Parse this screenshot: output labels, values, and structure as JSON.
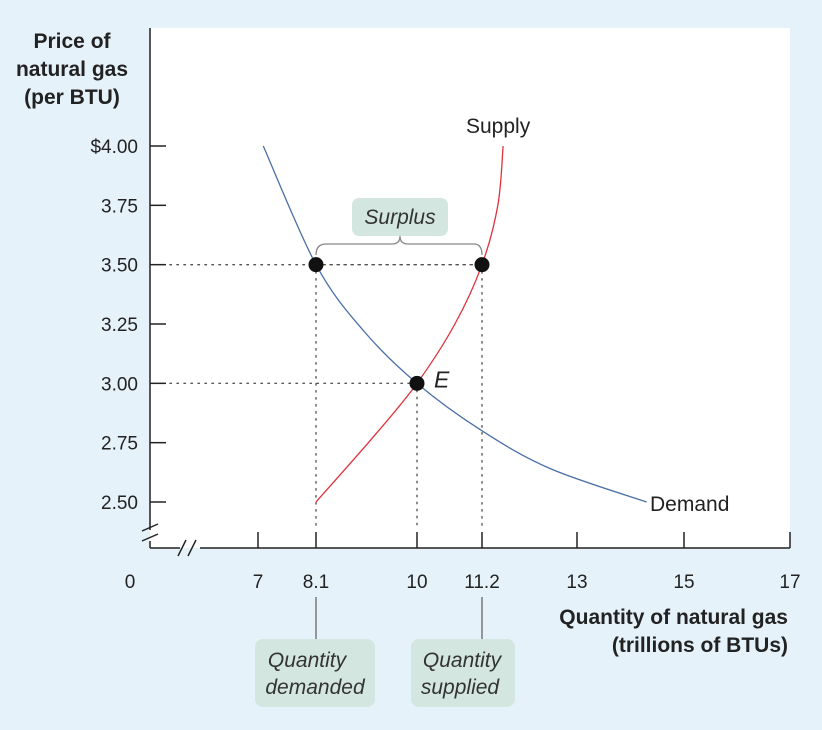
{
  "chart_data": {
    "type": "line",
    "ylabel": [
      "Price of",
      "natural gas",
      "(per BTU)"
    ],
    "xlabel": [
      "Quantity of natural gas",
      "(trillions of BTUs)"
    ],
    "y_ticks": [
      {
        "value": 4.0,
        "label": "$4.00"
      },
      {
        "value": 3.75,
        "label": "3.75"
      },
      {
        "value": 3.5,
        "label": "3.50"
      },
      {
        "value": 3.25,
        "label": "3.25"
      },
      {
        "value": 3.0,
        "label": "3.00"
      },
      {
        "value": 2.75,
        "label": "2.75"
      },
      {
        "value": 2.5,
        "label": "2.50"
      }
    ],
    "x_ticks": [
      {
        "value": 7,
        "label": "7"
      },
      {
        "value": 8.1,
        "label": "8.1"
      },
      {
        "value": 10,
        "label": "10"
      },
      {
        "value": 11.2,
        "label": "11.2"
      },
      {
        "value": 13,
        "label": "13"
      },
      {
        "value": 15,
        "label": "15"
      },
      {
        "value": 17,
        "label": "17"
      }
    ],
    "origin_label": "0",
    "xlim": [
      7,
      17
    ],
    "ylim": [
      2.5,
      4.0
    ],
    "series": [
      {
        "name": "Demand",
        "color": "#4a6fa5",
        "x": [
          7.1,
          8.1,
          9.0,
          10.0,
          11.2,
          12.5,
          14.3
        ],
        "y": [
          4.0,
          3.5,
          3.22,
          3.0,
          2.8,
          2.64,
          2.5
        ]
      },
      {
        "name": "Supply",
        "color": "#e0313a",
        "x": [
          8.1,
          9.2,
          10.0,
          10.7,
          11.2,
          11.5,
          11.6
        ],
        "y": [
          2.5,
          2.78,
          3.0,
          3.25,
          3.5,
          3.75,
          4.0
        ]
      }
    ],
    "points": [
      {
        "x": 8.1,
        "y": 3.5
      },
      {
        "x": 11.2,
        "y": 3.5
      },
      {
        "x": 10.0,
        "y": 3.0,
        "label": "E"
      }
    ],
    "annotations": {
      "surplus": "Surplus",
      "quantity_demanded": [
        "Quantity",
        "demanded"
      ],
      "quantity_supplied": [
        "Quantity",
        "supplied"
      ]
    },
    "colors": {
      "background": "#e6f2fa",
      "plot_background": "#ffffff",
      "label_box": "#d3e6e0",
      "demand": "#4a6fa5",
      "supply": "#e0313a"
    }
  }
}
